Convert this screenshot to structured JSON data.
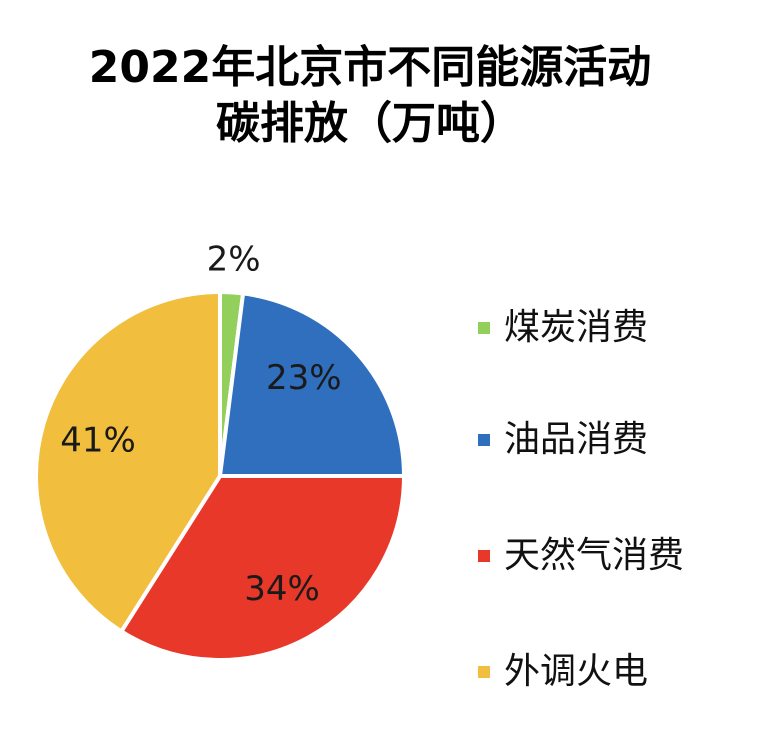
{
  "chart_data": {
    "type": "pie",
    "title_line1": "2022年北京市不同能源活动",
    "title_line2": "碳排放（万吨）",
    "categories": [
      "煤炭消费",
      "油品消费",
      "天然气消费",
      "外调火电"
    ],
    "values": [
      2,
      23,
      34,
      41
    ],
    "data_labels": [
      "2%",
      "23%",
      "34%",
      "41%"
    ],
    "colors": [
      "#92cf5b",
      "#2f6fbd",
      "#e8382a",
      "#f1be3e"
    ],
    "legend_position": "right",
    "start_angle": "top, clockwise"
  }
}
